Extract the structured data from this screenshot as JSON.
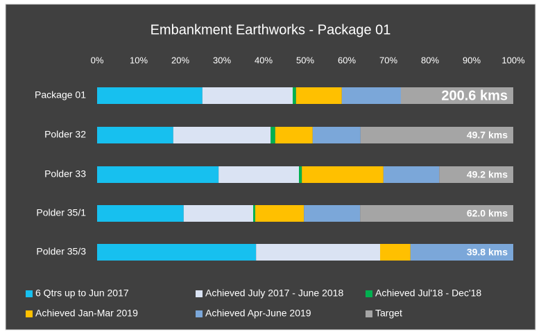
{
  "chart_data": {
    "type": "stacked-bar-horizontal",
    "title": "Embankment Earthworks - Package 01",
    "categories": [
      "Package 01",
      "Polder 32",
      "Polder 33",
      "Polder 35/1",
      "Polder 35/3"
    ],
    "series": [
      {
        "name": "6 Qtrs up to Jun 2017",
        "color": "#17c0ef",
        "values": [
          25.3,
          18.3,
          29.2,
          20.8,
          38.2
        ]
      },
      {
        "name": "Achieved July 2017 - June 2018",
        "color": "#dae3f3",
        "values": [
          21.7,
          23.4,
          19.3,
          16.7,
          29.8
        ]
      },
      {
        "name": "Achieved Jul'18 - Dec'18",
        "color": "#00b050",
        "values": [
          0.8,
          1.1,
          0.7,
          0.5,
          0
        ]
      },
      {
        "name": "Achieved Jan-Mar 2019",
        "color": "#ffc000",
        "values": [
          11,
          9,
          19.6,
          11.7,
          7.3
        ]
      },
      {
        "name": "Achieved Apr-June 2019",
        "color": "#7ba7d9",
        "values": [
          14.2,
          11.5,
          13.4,
          13.5,
          24.7
        ]
      },
      {
        "name": "Target",
        "color": "#a5a5a5",
        "values": [
          27,
          36.7,
          17.8,
          36.8,
          0
        ]
      }
    ],
    "total_labels": [
      "200.6 kms",
      "49.7 kms",
      "49.2 kms",
      "62.0 kms",
      "39.8 kms"
    ],
    "xlim": [
      0,
      100
    ],
    "xticks": [
      {
        "value": 0,
        "label": "0%"
      },
      {
        "value": 10,
        "label": "10%"
      },
      {
        "value": 20,
        "label": "20%"
      },
      {
        "value": 30,
        "label": "30%"
      },
      {
        "value": 40,
        "label": "40%"
      },
      {
        "value": 50,
        "label": "50%"
      },
      {
        "value": 60,
        "label": "60%"
      },
      {
        "value": 70,
        "label": "70%"
      },
      {
        "value": 80,
        "label": "80%"
      },
      {
        "value": 90,
        "label": "90%"
      },
      {
        "value": 100,
        "label": "100%"
      }
    ],
    "grid": false,
    "legend": "bottom"
  }
}
